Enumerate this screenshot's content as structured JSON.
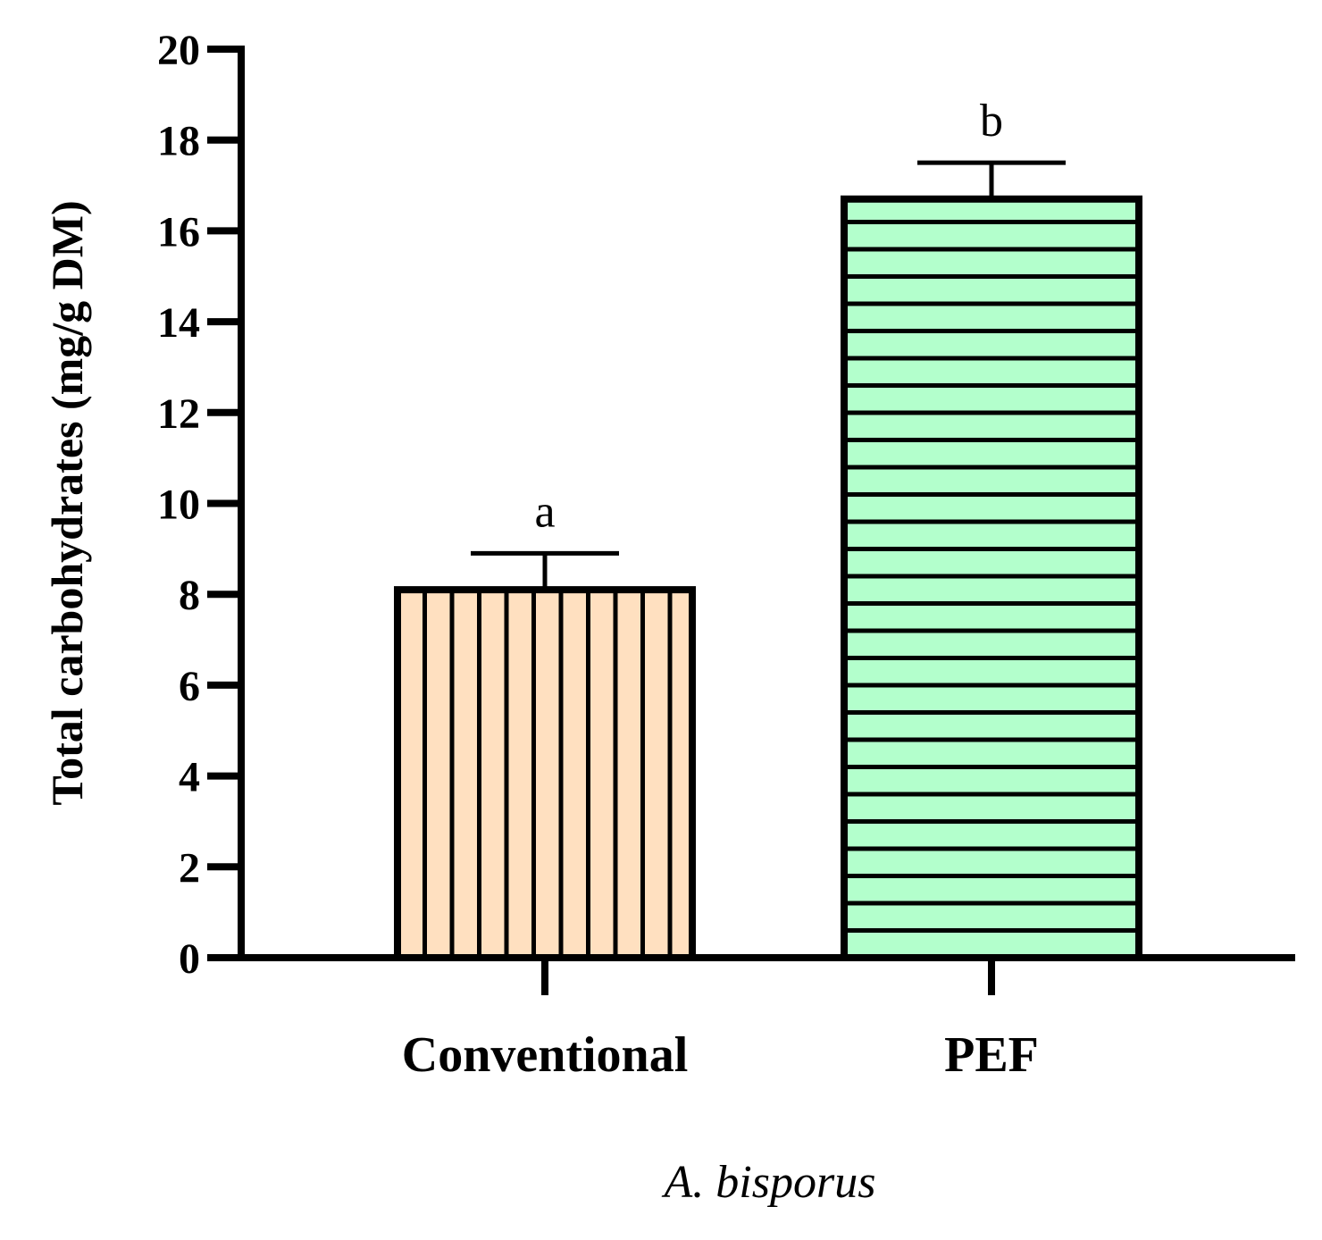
{
  "chart_data": {
    "type": "bar",
    "categories": [
      "Conventional",
      "PEF"
    ],
    "values": [
      8.1,
      16.7
    ],
    "errors": [
      0.8,
      0.8
    ],
    "significance_letters": [
      "a",
      "b"
    ],
    "colors": [
      "#FFE0C0",
      "#B3FFCC"
    ],
    "patterns": [
      "vertical-stripes",
      "horizontal-stripes"
    ],
    "ylabel": "Total carbohydrates (mg/g DM)",
    "xlabel": "A. bisporus",
    "ylim": [
      0,
      20
    ],
    "yticks": [
      "0",
      "2",
      "4",
      "6",
      "8",
      "10",
      "12",
      "14",
      "16",
      "18",
      "20"
    ]
  }
}
